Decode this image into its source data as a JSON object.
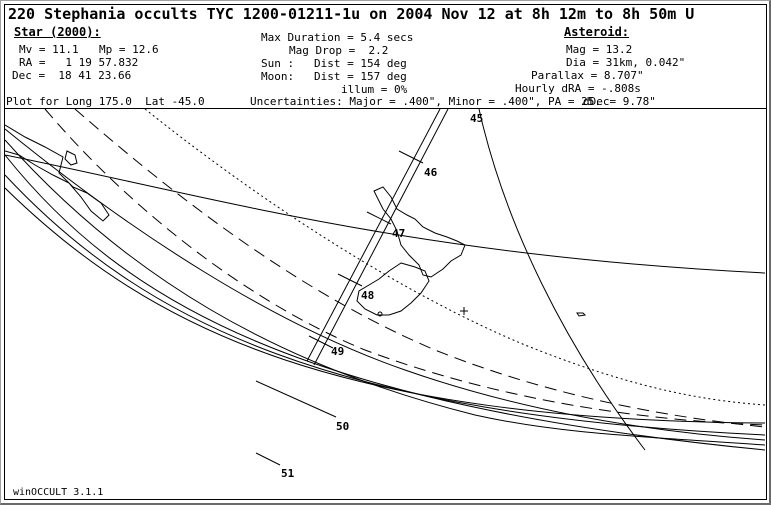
{
  "title": "220 Stephania occults TYC 1200-01211-1u on 2004 Nov 12 at 8h 12m to 8h 50m U",
  "star": {
    "heading": "Star (2000):",
    "mv": "Mv = 11.1",
    "mp": "Mp = 12.6",
    "ra": "RA =   1 19 57.832",
    "dec": "Dec =  18 41 23.66"
  },
  "center": {
    "max_duration": "Max Duration = 5.4 secs",
    "mag_drop": "Mag Drop =  2.2",
    "sun": "Sun :   Dist = 154 deg",
    "moon": "Moon:   Dist = 157 deg",
    "illum": "illum = 0%"
  },
  "asteroid": {
    "heading": "Asteroid:",
    "mag": "Mag = 13.2",
    "dia": "Dia = 31km, 0.042\"",
    "parallax": "Parallax = 8.707\"",
    "hourly_dra": "Hourly dRA = -.808s",
    "ddec": "dDec= 9.78\""
  },
  "plot_for": "Plot for Long 175.0  Lat -45.0",
  "uncertainties": "Uncertainties: Major = .400\", Minor = .400\", PA = 25.",
  "time_ticks": [
    "45",
    "46",
    "47",
    "48",
    "49",
    "50",
    "51"
  ],
  "footer": "winOCCULT 3.1.1",
  "colors": {
    "ink": "#000000",
    "background": "#ffffff"
  }
}
